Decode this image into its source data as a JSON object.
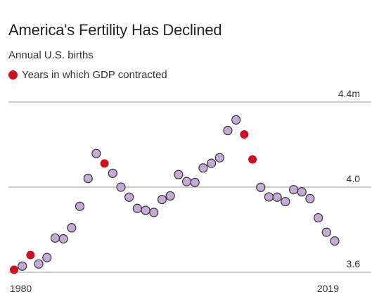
{
  "chart_data": {
    "type": "scatter",
    "title": "America's Fertility Has Declined",
    "subtitle": "Annual U.S. births",
    "legend": [
      {
        "label": "Years in which GDP contracted",
        "color": "#cc1122"
      }
    ],
    "x_tick_labels": [
      "1980",
      "2019"
    ],
    "y_ticks": [
      {
        "value": 4.4,
        "label": "4.4m"
      },
      {
        "value": 4.0,
        "label": "4.0"
      },
      {
        "value": 3.6,
        "label": "3.6"
      }
    ],
    "xlim": [
      1980,
      2019
    ],
    "ylim": [
      3.6,
      4.4
    ],
    "grid": true,
    "colors": {
      "normal_fill": "#c6aad6",
      "normal_stroke": "#333333",
      "gdp_contraction": "#cc1122",
      "gridline": "#bbbbbb"
    },
    "points": [
      {
        "year": 1980,
        "births": 3.612,
        "gdp_contraction": true
      },
      {
        "year": 1981,
        "births": 3.629,
        "gdp_contraction": false
      },
      {
        "year": 1982,
        "births": 3.681,
        "gdp_contraction": true
      },
      {
        "year": 1983,
        "births": 3.639,
        "gdp_contraction": false
      },
      {
        "year": 1984,
        "births": 3.669,
        "gdp_contraction": false
      },
      {
        "year": 1985,
        "births": 3.761,
        "gdp_contraction": false
      },
      {
        "year": 1986,
        "births": 3.757,
        "gdp_contraction": false
      },
      {
        "year": 1987,
        "births": 3.809,
        "gdp_contraction": false
      },
      {
        "year": 1988,
        "births": 3.91,
        "gdp_contraction": false
      },
      {
        "year": 1989,
        "births": 4.041,
        "gdp_contraction": false
      },
      {
        "year": 1990,
        "births": 4.158,
        "gdp_contraction": false
      },
      {
        "year": 1991,
        "births": 4.111,
        "gdp_contraction": true
      },
      {
        "year": 1992,
        "births": 4.065,
        "gdp_contraction": false
      },
      {
        "year": 1993,
        "births": 4.0,
        "gdp_contraction": false
      },
      {
        "year": 1994,
        "births": 3.953,
        "gdp_contraction": false
      },
      {
        "year": 1995,
        "births": 3.9,
        "gdp_contraction": false
      },
      {
        "year": 1996,
        "births": 3.891,
        "gdp_contraction": false
      },
      {
        "year": 1997,
        "births": 3.881,
        "gdp_contraction": false
      },
      {
        "year": 1998,
        "births": 3.942,
        "gdp_contraction": false
      },
      {
        "year": 1999,
        "births": 3.959,
        "gdp_contraction": false
      },
      {
        "year": 2000,
        "births": 4.059,
        "gdp_contraction": false
      },
      {
        "year": 2001,
        "births": 4.026,
        "gdp_contraction": false
      },
      {
        "year": 2002,
        "births": 4.022,
        "gdp_contraction": false
      },
      {
        "year": 2003,
        "births": 4.09,
        "gdp_contraction": false
      },
      {
        "year": 2004,
        "births": 4.112,
        "gdp_contraction": false
      },
      {
        "year": 2005,
        "births": 4.138,
        "gdp_contraction": false
      },
      {
        "year": 2006,
        "births": 4.266,
        "gdp_contraction": false
      },
      {
        "year": 2007,
        "births": 4.316,
        "gdp_contraction": false
      },
      {
        "year": 2008,
        "births": 4.248,
        "gdp_contraction": true
      },
      {
        "year": 2009,
        "births": 4.13,
        "gdp_contraction": true
      },
      {
        "year": 2010,
        "births": 3.999,
        "gdp_contraction": false
      },
      {
        "year": 2011,
        "births": 3.954,
        "gdp_contraction": false
      },
      {
        "year": 2012,
        "births": 3.953,
        "gdp_contraction": false
      },
      {
        "year": 2013,
        "births": 3.932,
        "gdp_contraction": false
      },
      {
        "year": 2014,
        "births": 3.988,
        "gdp_contraction": false
      },
      {
        "year": 2015,
        "births": 3.978,
        "gdp_contraction": false
      },
      {
        "year": 2016,
        "births": 3.946,
        "gdp_contraction": false
      },
      {
        "year": 2017,
        "births": 3.856,
        "gdp_contraction": false
      },
      {
        "year": 2018,
        "births": 3.788,
        "gdp_contraction": false
      },
      {
        "year": 2019,
        "births": 3.747,
        "gdp_contraction": false
      }
    ]
  }
}
